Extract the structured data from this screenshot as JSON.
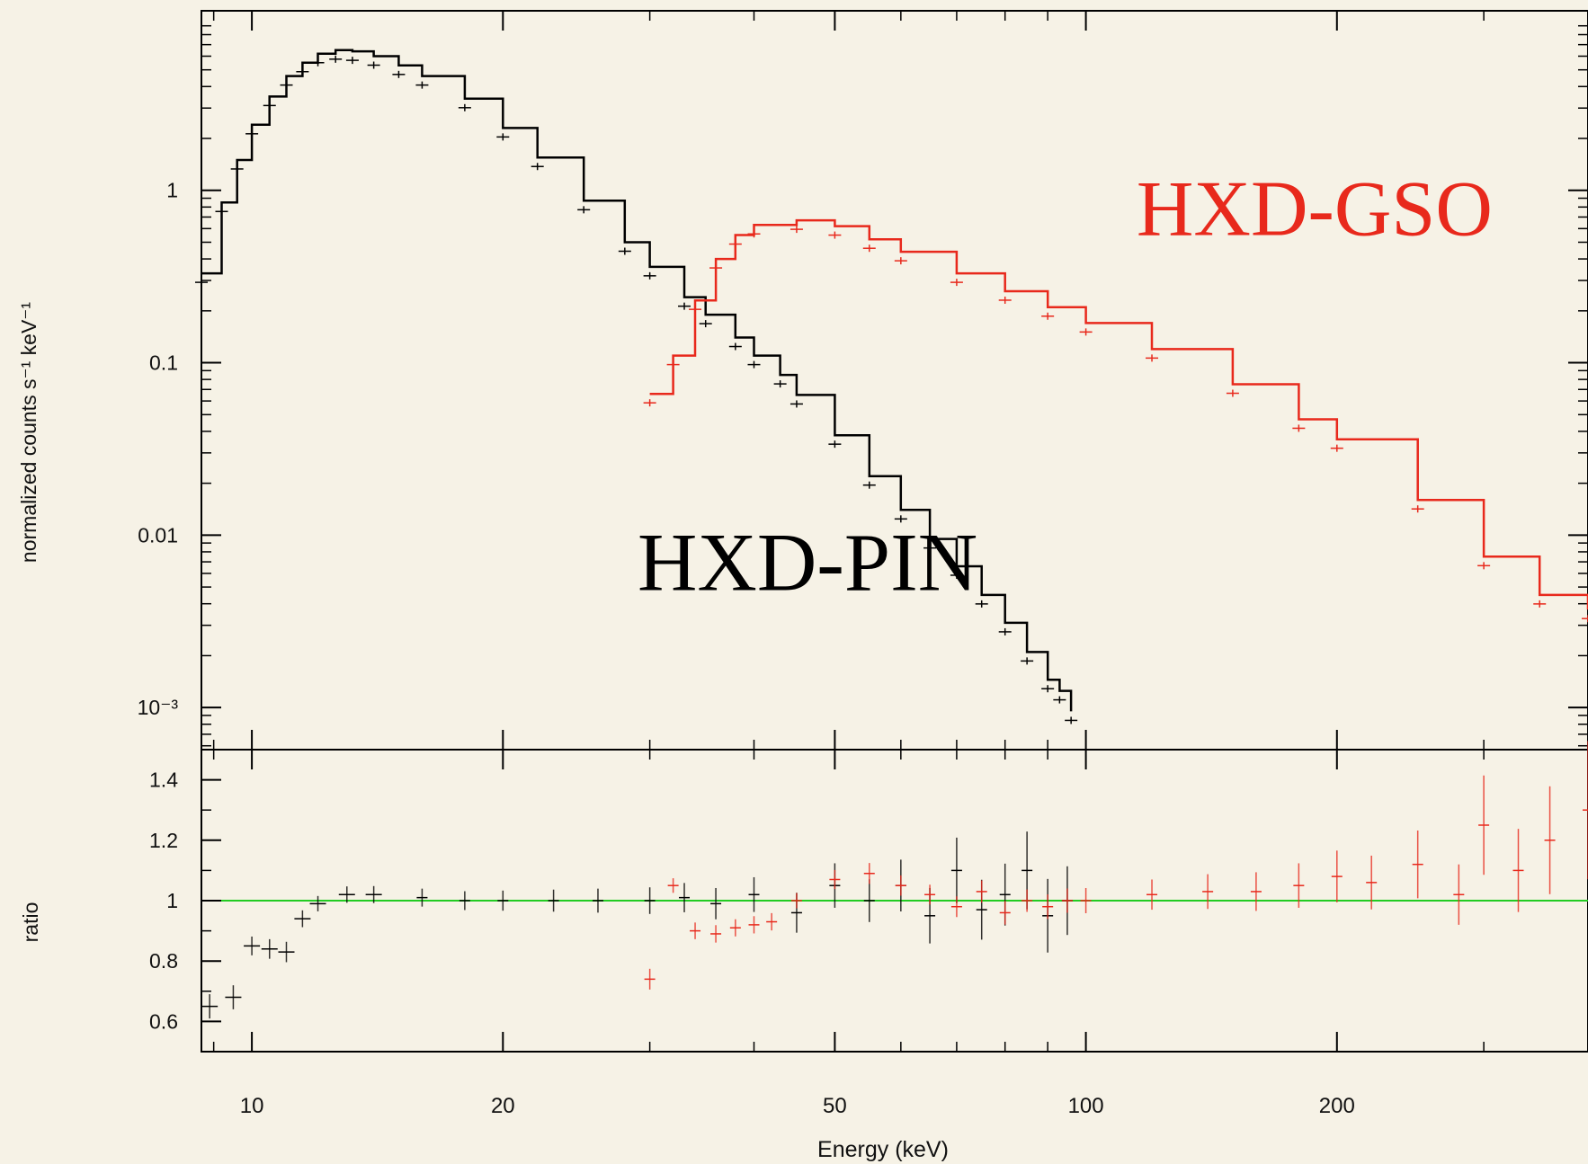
{
  "chart_data": [
    {
      "type": "scatter",
      "panel": "spectrum",
      "xlabel": "Energy (keV)",
      "ylabel": "normalized counts s⁻¹ keV⁻¹",
      "xscale": "log",
      "yscale": "log",
      "xlim": [
        8.7,
        400
      ],
      "ylim": [
        0.00057,
        11
      ],
      "xticks": [
        {
          "value": 10,
          "label": "10"
        },
        {
          "value": 20,
          "label": "20"
        },
        {
          "value": 50,
          "label": "50"
        },
        {
          "value": 100,
          "label": "100"
        },
        {
          "value": 200,
          "label": "200"
        }
      ],
      "yticks": [
        {
          "value": 1,
          "label": "1"
        },
        {
          "value": 0.1,
          "label": "0.1"
        },
        {
          "value": 0.01,
          "label": "0.01"
        },
        {
          "value": 0.001,
          "label": "10⁻³"
        }
      ],
      "grid": false,
      "legend": "none",
      "annotations": [
        {
          "text": "HXD-PIN",
          "color": "#000000",
          "x": 29,
          "y": 0.0048
        },
        {
          "text": "HXD-GSO",
          "color": "#e8291c",
          "x": 115,
          "y": 0.55
        }
      ],
      "series": [
        {
          "color": "#000000",
          "x": [
            8.7,
            9.2,
            9.6,
            10.0,
            10.5,
            11.0,
            11.5,
            12.0,
            12.6,
            13.2,
            14.0,
            15.0,
            16.0,
            18.0,
            20.0,
            22.0,
            25.0,
            28.0,
            30.0,
            33.0,
            35.0,
            38.0,
            40.0,
            43.0,
            45.0,
            50.0,
            55.0,
            60.0,
            65.0,
            70.0,
            75.0,
            80.0,
            85.0,
            90.0,
            93.0,
            96.0
          ],
          "y": [
            0.33,
            0.85,
            1.5,
            2.4,
            3.5,
            4.6,
            5.5,
            6.2,
            6.5,
            6.4,
            6.0,
            5.3,
            4.6,
            3.4,
            2.3,
            1.55,
            0.87,
            0.5,
            0.36,
            0.24,
            0.19,
            0.14,
            0.11,
            0.085,
            0.065,
            0.038,
            0.022,
            0.014,
            0.0095,
            0.0066,
            0.0045,
            0.0031,
            0.0021,
            0.00145,
            0.00125,
            0.00095
          ]
        },
        {
          "color": "#e8291c",
          "x": [
            30,
            32,
            34,
            36,
            38,
            40,
            45,
            50,
            55,
            60,
            70,
            80,
            90,
            100,
            120,
            150,
            180,
            200,
            250,
            300,
            350,
            400
          ],
          "y": [
            0.066,
            0.11,
            0.23,
            0.4,
            0.55,
            0.63,
            0.67,
            0.62,
            0.52,
            0.44,
            0.33,
            0.26,
            0.21,
            0.17,
            0.12,
            0.075,
            0.047,
            0.036,
            0.016,
            0.0075,
            0.0045,
            0.0037
          ]
        }
      ]
    },
    {
      "type": "scatter",
      "panel": "ratio",
      "xlabel": "Energy (keV)",
      "ylabel": "ratio",
      "xscale": "log",
      "yscale": "linear",
      "xlim": [
        8.7,
        400
      ],
      "ylim": [
        0.5,
        1.5
      ],
      "yticks": [
        {
          "value": 0.6,
          "label": "0.6"
        },
        {
          "value": 0.8,
          "label": "0.8"
        },
        {
          "value": 1,
          "label": "1"
        },
        {
          "value": 1.2,
          "label": "1.2"
        },
        {
          "value": 1.4,
          "label": "1.4"
        }
      ],
      "reference_line": {
        "y": 1,
        "color": "#22cc22"
      },
      "series": [
        {
          "color": "#000000",
          "x": [
            8.9,
            9.5,
            10.0,
            10.5,
            11.0,
            11.5,
            12.0,
            13.0,
            14.0,
            16.0,
            18.0,
            20.0,
            23.0,
            26.0,
            30.0,
            33.0,
            36.0,
            40.0,
            45.0,
            50.0,
            55.0,
            60.0,
            65.0,
            70.0,
            75.0,
            80.0,
            85.0,
            90.0,
            95.0
          ],
          "y": [
            0.65,
            0.68,
            0.85,
            0.84,
            0.83,
            0.94,
            0.99,
            1.02,
            1.02,
            1.01,
            1.0,
            1.0,
            1.0,
            1.0,
            1.0,
            1.01,
            0.99,
            1.02,
            0.96,
            1.05,
            1.0,
            1.05,
            0.95,
            1.1,
            0.97,
            1.02,
            1.1,
            0.95,
            1.0
          ]
        },
        {
          "color": "#e8291c",
          "x": [
            30,
            32,
            34,
            36,
            38,
            40,
            42,
            45,
            50,
            55,
            60,
            65,
            70,
            75,
            80,
            85,
            90,
            95,
            100,
            120,
            140,
            160,
            180,
            200,
            220,
            250,
            280,
            300,
            330,
            360,
            400
          ],
          "y": [
            0.74,
            1.05,
            0.9,
            0.89,
            0.91,
            0.92,
            0.93,
            1.0,
            1.07,
            1.09,
            1.05,
            1.02,
            0.98,
            1.03,
            0.96,
            1.0,
            0.98,
            1.0,
            1.0,
            1.02,
            1.03,
            1.03,
            1.05,
            1.08,
            1.06,
            1.12,
            1.02,
            1.25,
            1.1,
            1.2,
            1.3
          ]
        }
      ]
    }
  ]
}
